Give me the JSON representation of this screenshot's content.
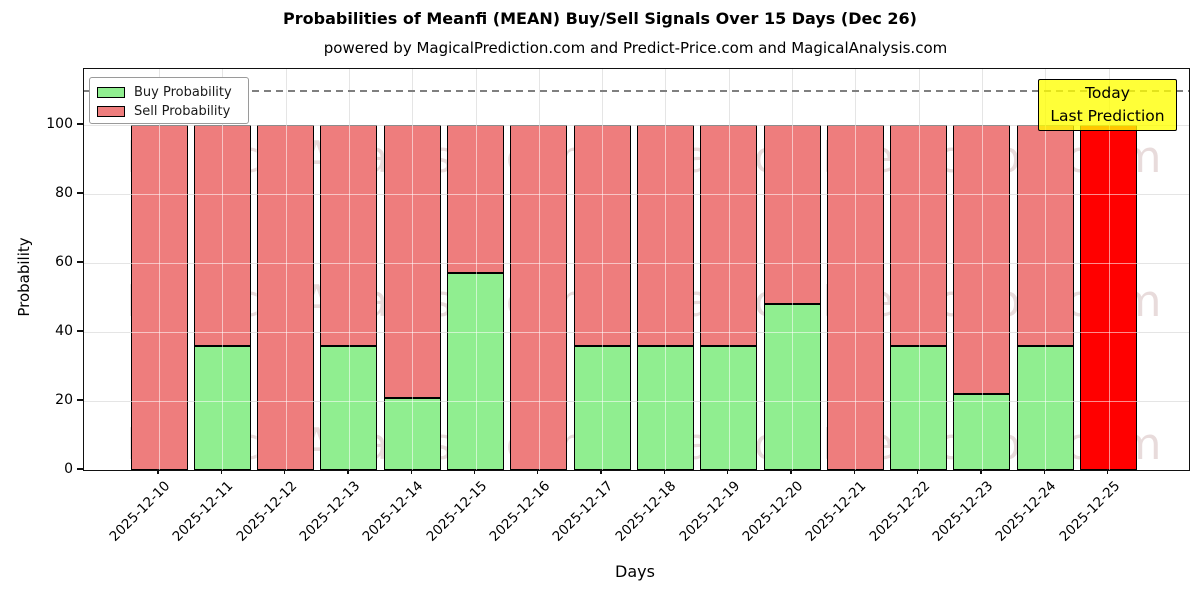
{
  "header": {
    "title": "Probabilities of Meanfi (MEAN) Buy/Sell Signals Over 15 Days (Dec 26)",
    "subtitle": "powered by MagicalPrediction.com and Predict-Price.com and MagicalAnalysis.com"
  },
  "legend": {
    "items": [
      {
        "label": "Buy Probability",
        "color": "#90ee90"
      },
      {
        "label": "Sell Probability",
        "color": "#ee7d7d"
      }
    ]
  },
  "annotation": {
    "lines": [
      "Today",
      "Last Prediction"
    ],
    "bg_color": "#ffff00"
  },
  "watermark": {
    "texts": [
      "MagicalAnalysis.com",
      "Magica Prediction.com",
      "MagicalAnalysis.com"
    ],
    "color": "rgba(150,90,90,0.22)"
  },
  "chart_data": {
    "type": "bar",
    "stacked": true,
    "title": "Probabilities of Meanfi (MEAN) Buy/Sell Signals Over 15 Days (Dec 26)",
    "xlabel": "Days",
    "ylabel": "Probability",
    "categories": [
      "2025-12-10",
      "2025-12-11",
      "2025-12-12",
      "2025-12-13",
      "2025-12-14",
      "2025-12-15",
      "2025-12-16",
      "2025-12-17",
      "2025-12-18",
      "2025-12-19",
      "2025-12-20",
      "2025-12-21",
      "2025-12-22",
      "2025-12-23",
      "2025-12-24",
      "2025-12-25"
    ],
    "series": [
      {
        "name": "Buy Probability",
        "color": "#90ee90",
        "values": [
          0,
          36,
          0,
          36,
          21,
          57,
          0,
          36,
          36,
          36,
          48,
          0,
          36,
          22,
          36,
          0
        ]
      },
      {
        "name": "Sell Probability",
        "color": "#ee7d7d",
        "values": [
          100,
          64,
          100,
          64,
          79,
          43,
          100,
          64,
          64,
          64,
          52,
          100,
          64,
          78,
          64,
          100
        ]
      }
    ],
    "highlight_bar": {
      "index": 15,
      "category": "2025-12-25",
      "value": 100,
      "color": "#ff0000",
      "note": "Today / Last Prediction"
    },
    "yticks": [
      0,
      20,
      40,
      60,
      80,
      100
    ],
    "ylim": [
      0,
      116
    ],
    "dashed_hline": 110,
    "grid": true,
    "legend_position": "upper left",
    "bar_edge_color": "#000000",
    "grid_color": "#c6c6c6"
  }
}
